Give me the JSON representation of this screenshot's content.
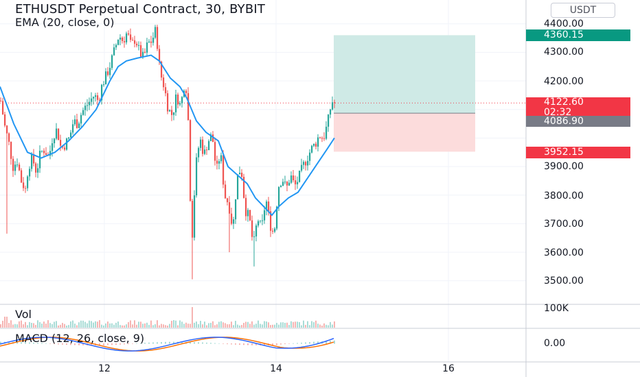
{
  "header": {
    "title": "ETHUSDT Perpetual Contract, 30, BYBIT",
    "indicator": "EMA (20, close, 0)"
  },
  "currency_button": "USDT",
  "price_axis": {
    "labels": [
      "4400.00",
      "4300.00",
      "4200.00",
      "3900.00",
      "3800.00",
      "3700.00",
      "3600.00",
      "3500.00"
    ],
    "values": [
      4400,
      4300,
      4200,
      3900,
      3800,
      3700,
      3600,
      3500
    ]
  },
  "badges": {
    "target": {
      "label": "4360.15",
      "value": 4360.15,
      "color": "#089981"
    },
    "last": {
      "label": "4122.60",
      "value": 4122.6,
      "countdown": "02:32",
      "color": "#f23645"
    },
    "entry": {
      "label": "4086.90",
      "value": 4086.9,
      "color": "#787b86"
    },
    "stop": {
      "label": "3952.15",
      "value": 3952.15,
      "color": "#f23645"
    }
  },
  "time_axis": {
    "labels": [
      "12",
      "14",
      "16"
    ]
  },
  "volume_panel": {
    "label": "Vol",
    "axis_label": "100K"
  },
  "macd_panel": {
    "label": "MACD (12, 26, close, 9)",
    "axis_label": "0.00"
  },
  "colors": {
    "up": "#26a69a",
    "down": "#ef5350",
    "ema": "#2196f3",
    "macd": "#2962ff",
    "signal": "#ff6d00",
    "profit_zone": "#cfeae6",
    "loss_zone": "#fcdcdc"
  },
  "chart_data": {
    "type": "candlestick",
    "symbol": "ETHUSDT",
    "ylim": [
      3450,
      4450
    ],
    "position": {
      "entry": 4086.9,
      "target": 4360.15,
      "stop": 3952.15
    },
    "close_path": [
      [
        0,
        4130
      ],
      [
        6,
        4040
      ],
      [
        12,
        3980
      ],
      [
        18,
        3900
      ],
      [
        24,
        3920
      ],
      [
        30,
        3850
      ],
      [
        36,
        3820
      ],
      [
        40,
        3900
      ],
      [
        46,
        3930
      ],
      [
        52,
        3880
      ],
      [
        58,
        3950
      ],
      [
        64,
        3960
      ],
      [
        70,
        3930
      ],
      [
        76,
        4010
      ],
      [
        82,
        4030
      ],
      [
        88,
        3960
      ],
      [
        94,
        3980
      ],
      [
        100,
        4000
      ],
      [
        106,
        4060
      ],
      [
        112,
        4050
      ],
      [
        118,
        4090
      ],
      [
        124,
        4110
      ],
      [
        130,
        4130
      ],
      [
        136,
        4150
      ],
      [
        142,
        4130
      ],
      [
        148,
        4190
      ],
      [
        154,
        4220
      ],
      [
        160,
        4260
      ],
      [
        166,
        4310
      ],
      [
        172,
        4360
      ],
      [
        178,
        4340
      ],
      [
        184,
        4370
      ],
      [
        190,
        4320
      ],
      [
        196,
        4350
      ],
      [
        202,
        4300
      ],
      [
        208,
        4280
      ],
      [
        214,
        4330
      ],
      [
        220,
        4340
      ],
      [
        226,
        4380
      ],
      [
        232,
        4230
      ],
      [
        238,
        4180
      ],
      [
        244,
        4100
      ],
      [
        250,
        4080
      ],
      [
        256,
        4150
      ],
      [
        262,
        4110
      ],
      [
        268,
        4200
      ],
      [
        272,
        4150
      ],
      [
        278,
        3620
      ],
      [
        284,
        3900
      ],
      [
        290,
        4000
      ],
      [
        296,
        3940
      ],
      [
        302,
        3990
      ],
      [
        308,
        4010
      ],
      [
        314,
        3880
      ],
      [
        320,
        3950
      ],
      [
        326,
        3800
      ],
      [
        332,
        3770
      ],
      [
        338,
        3680
      ],
      [
        344,
        3860
      ],
      [
        350,
        3900
      ],
      [
        356,
        3750
      ],
      [
        362,
        3720
      ],
      [
        368,
        3620
      ],
      [
        374,
        3720
      ],
      [
        380,
        3680
      ],
      [
        386,
        3790
      ],
      [
        392,
        3700
      ],
      [
        398,
        3660
      ],
      [
        404,
        3830
      ],
      [
        410,
        3860
      ],
      [
        416,
        3820
      ],
      [
        422,
        3870
      ],
      [
        428,
        3830
      ],
      [
        434,
        3860
      ],
      [
        440,
        3900
      ],
      [
        446,
        3930
      ],
      [
        452,
        3960
      ],
      [
        458,
        3980
      ],
      [
        464,
        4010
      ],
      [
        470,
        4000
      ],
      [
        476,
        4050
      ],
      [
        482,
        4130
      ],
      [
        487,
        4120
      ]
    ],
    "ema_path": [
      [
        0,
        4180
      ],
      [
        20,
        4050
      ],
      [
        40,
        3950
      ],
      [
        60,
        3930
      ],
      [
        80,
        3950
      ],
      [
        100,
        3990
      ],
      [
        120,
        4040
      ],
      [
        140,
        4100
      ],
      [
        160,
        4200
      ],
      [
        172,
        4250
      ],
      [
        184,
        4270
      ],
      [
        200,
        4280
      ],
      [
        220,
        4290
      ],
      [
        232,
        4270
      ],
      [
        248,
        4210
      ],
      [
        262,
        4180
      ],
      [
        272,
        4140
      ],
      [
        286,
        4060
      ],
      [
        300,
        4020
      ],
      [
        318,
        3990
      ],
      [
        332,
        3900
      ],
      [
        346,
        3870
      ],
      [
        360,
        3840
      ],
      [
        372,
        3790
      ],
      [
        384,
        3760
      ],
      [
        396,
        3730
      ],
      [
        406,
        3760
      ],
      [
        420,
        3790
      ],
      [
        434,
        3810
      ],
      [
        448,
        3860
      ],
      [
        462,
        3910
      ],
      [
        476,
        3960
      ],
      [
        487,
        4000
      ]
    ]
  }
}
